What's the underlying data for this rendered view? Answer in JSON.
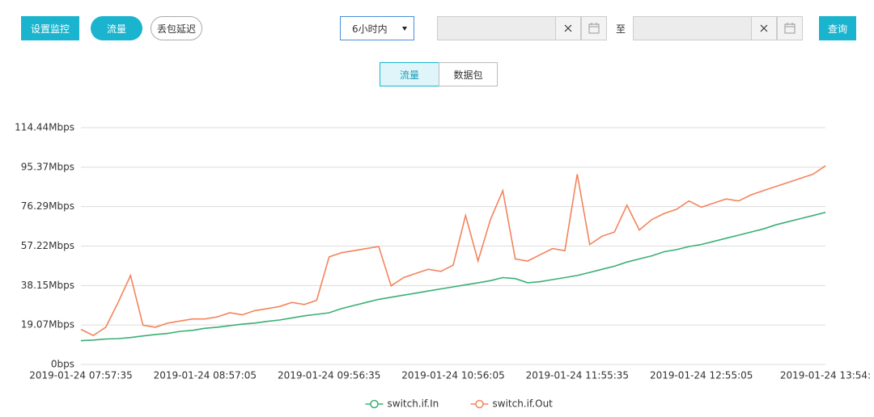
{
  "toolbar": {
    "buttons": [
      "设置监控",
      "流量",
      "丢包延迟"
    ],
    "range_select": "6小时内",
    "to_label": "至",
    "query_button": "查询"
  },
  "tabs": [
    "流量",
    "数据包"
  ],
  "chart_data": {
    "type": "line",
    "categories": [
      "2019-01-24 07:57:35",
      null,
      null,
      null,
      null,
      null,
      null,
      null,
      null,
      null,
      "2019-01-24 08:57:05",
      null,
      null,
      null,
      null,
      null,
      null,
      null,
      null,
      null,
      "2019-01-24 09:56:35",
      null,
      null,
      null,
      null,
      null,
      null,
      null,
      null,
      null,
      "2019-01-24 10:56:05",
      null,
      null,
      null,
      null,
      null,
      null,
      null,
      null,
      null,
      "2019-01-24 11:55:35",
      null,
      null,
      null,
      null,
      null,
      null,
      null,
      null,
      null,
      "2019-01-24 12:55:05",
      null,
      null,
      null,
      null,
      null,
      null,
      null,
      null,
      null,
      "2019-01-24 13:54:"
    ],
    "series": [
      {
        "name": "switch.if.In",
        "color": "#3aaf73",
        "values": [
          11.5,
          11.8,
          12.3,
          12.5,
          13,
          13.8,
          14.5,
          15,
          16,
          16.5,
          17.5,
          18,
          18.8,
          19.5,
          20,
          20.8,
          21.5,
          22.5,
          23.5,
          24.2,
          25,
          27,
          28.5,
          30,
          31.5,
          32.5,
          33.5,
          34.5,
          35.5,
          36.5,
          37.5,
          38.5,
          39.5,
          40.5,
          42,
          41.5,
          39.5,
          40,
          41,
          42,
          43,
          44.5,
          46,
          47.5,
          49.5,
          51,
          52.5,
          54.5,
          55.5,
          57,
          58,
          59.5,
          61,
          62.5,
          64,
          65.5,
          67.5,
          69,
          70.5,
          72,
          73.5
        ]
      },
      {
        "name": "switch.if.Out",
        "color": "#f3845c",
        "values": [
          17,
          14,
          18,
          30,
          43,
          19,
          18,
          20,
          21,
          22,
          22,
          23,
          25,
          24,
          26,
          27,
          28,
          30,
          29,
          31,
          52,
          54,
          55,
          56,
          57,
          38,
          42,
          44,
          46,
          45,
          48,
          72,
          50,
          70,
          84,
          51,
          50,
          53,
          56,
          55,
          92,
          58,
          62,
          64,
          77,
          65,
          70,
          73,
          75,
          79,
          76,
          78,
          80,
          79,
          82,
          84,
          86,
          88,
          90,
          92,
          96
        ]
      }
    ],
    "ylim": [
      0,
      114.44
    ],
    "yticks": [
      {
        "value": 0,
        "label": "0bps"
      },
      {
        "value": 19.07,
        "label": "19.07Mbps"
      },
      {
        "value": 38.15,
        "label": "38.15Mbps"
      },
      {
        "value": 57.22,
        "label": "57.22Mbps"
      },
      {
        "value": 76.29,
        "label": "76.29Mbps"
      },
      {
        "value": 95.37,
        "label": "95.37Mbps"
      },
      {
        "value": 114.44,
        "label": "114.44Mbps"
      }
    ],
    "grid": true,
    "legend": "bottom"
  }
}
